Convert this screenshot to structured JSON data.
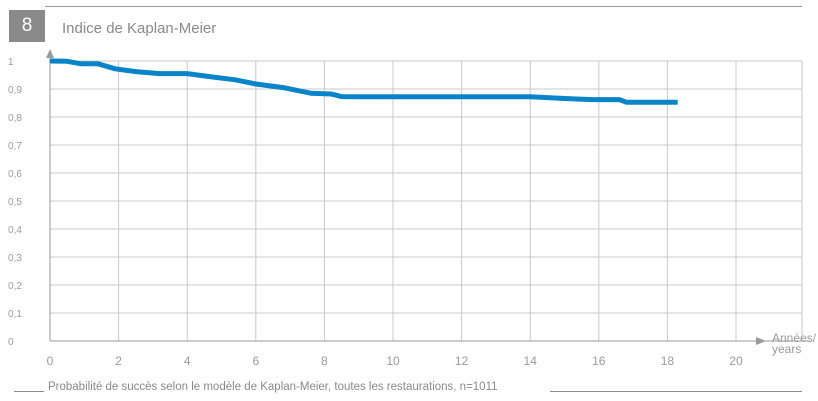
{
  "figure": {
    "number": "8",
    "title": "Indice de Kaplan-Meier",
    "caption": "Probabilité de succès selon le modèle de Kaplan-Meier, toutes les restaurations, n=1011"
  },
  "chart_data": {
    "type": "line",
    "title": "Indice de Kaplan-Meier",
    "xlabel_lines": [
      "Années/",
      "years"
    ],
    "ylabel": "",
    "xlim": [
      0,
      22
    ],
    "ylim": [
      0,
      1
    ],
    "x_ticks": [
      "0",
      "2",
      "4",
      "6",
      "8",
      "10",
      "12",
      "14",
      "16",
      "18",
      "20"
    ],
    "y_ticks": [
      "0",
      "0,1",
      "0,2",
      "0,3",
      "0,4",
      "0,5",
      "0,6",
      "0,7",
      "0,8",
      "0,9",
      "1"
    ],
    "grid": true,
    "line_color": "#0a84c9",
    "grid_color": "#c8c8c8",
    "series": [
      {
        "x": [
          0,
          0.5,
          0.9,
          1.4,
          1.9,
          2.5,
          3.2,
          4.0,
          4.6,
          5.4,
          6.0,
          6.8,
          7.6,
          8.2,
          8.5,
          9.0,
          10,
          12,
          14,
          15,
          15.8,
          16.6,
          16.8,
          18.3
        ],
        "y": [
          1.0,
          0.999,
          0.99,
          0.99,
          0.972,
          0.962,
          0.955,
          0.955,
          0.945,
          0.933,
          0.918,
          0.905,
          0.885,
          0.882,
          0.873,
          0.872,
          0.872,
          0.872,
          0.872,
          0.866,
          0.862,
          0.862,
          0.853,
          0.853
        ]
      }
    ]
  }
}
